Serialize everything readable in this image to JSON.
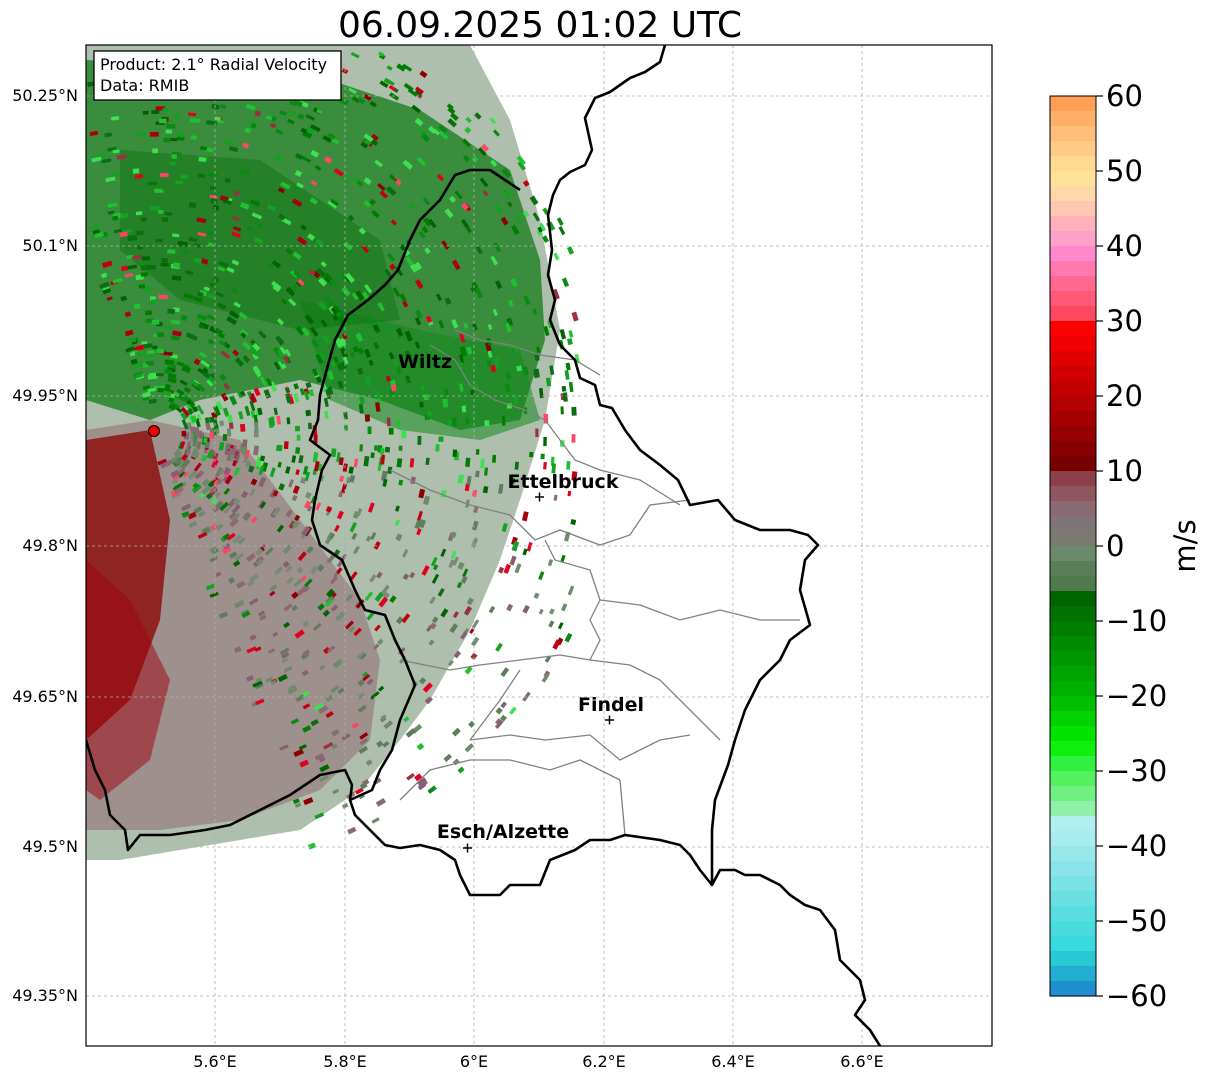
{
  "title": "06.09.2025 01:02 UTC",
  "info_box": {
    "product": "Product: 2.1° Radial Velocity",
    "data": "Data: RMIB"
  },
  "map": {
    "lat_ticks": [
      "50.25°N",
      "50.1°N",
      "49.95°N",
      "49.8°N",
      "49.65°N",
      "49.5°N",
      "49.35°N"
    ],
    "lon_ticks": [
      "5.6°E",
      "5.8°E",
      "6°E",
      "6.2°E",
      "6.4°E",
      "6.6°E"
    ],
    "places": [
      {
        "name": "Wiltz",
        "marker": false
      },
      {
        "name": "Ettelbruck",
        "marker": true
      },
      {
        "name": "Findel",
        "marker": true
      },
      {
        "name": "Esch/Alzette",
        "marker": true
      }
    ],
    "radar_site_color": "#ee0000"
  },
  "colorbar": {
    "label": "m/s",
    "ticks": [
      "60",
      "50",
      "40",
      "30",
      "20",
      "10",
      "0",
      "−10",
      "−20",
      "−30",
      "−40",
      "−50",
      "−60"
    ],
    "min": -60,
    "max": 60
  }
}
